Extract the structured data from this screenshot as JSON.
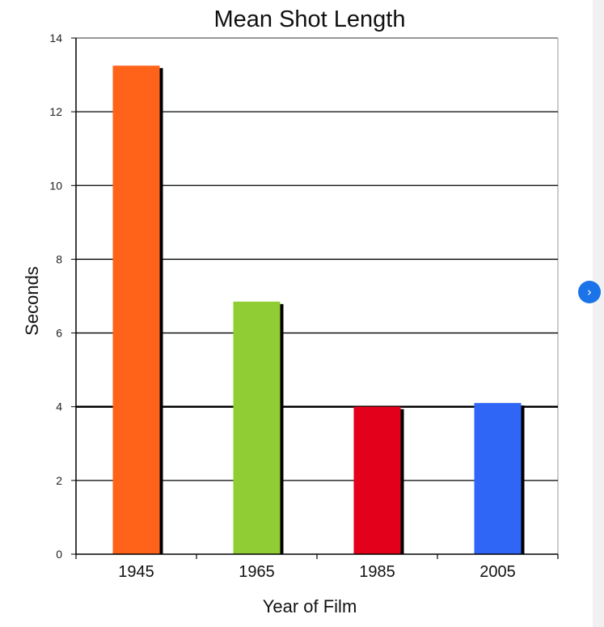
{
  "chart_data": {
    "type": "bar",
    "title": "Mean Shot Length",
    "xlabel": "Year of Film",
    "ylabel": "Seconds",
    "categories": [
      "1945",
      "1965",
      "1985",
      "2005"
    ],
    "values": [
      13.25,
      6.85,
      4.0,
      4.1
    ],
    "colors": [
      "#ff6319",
      "#90cc33",
      "#e2001a",
      "#3066f6"
    ],
    "ylim": [
      0,
      14
    ],
    "yticks": [
      0,
      2,
      4,
      6,
      8,
      10,
      12,
      14
    ],
    "grid": true
  },
  "ui": {
    "next_icon": "chevron-right-icon",
    "next_glyph": "›"
  }
}
